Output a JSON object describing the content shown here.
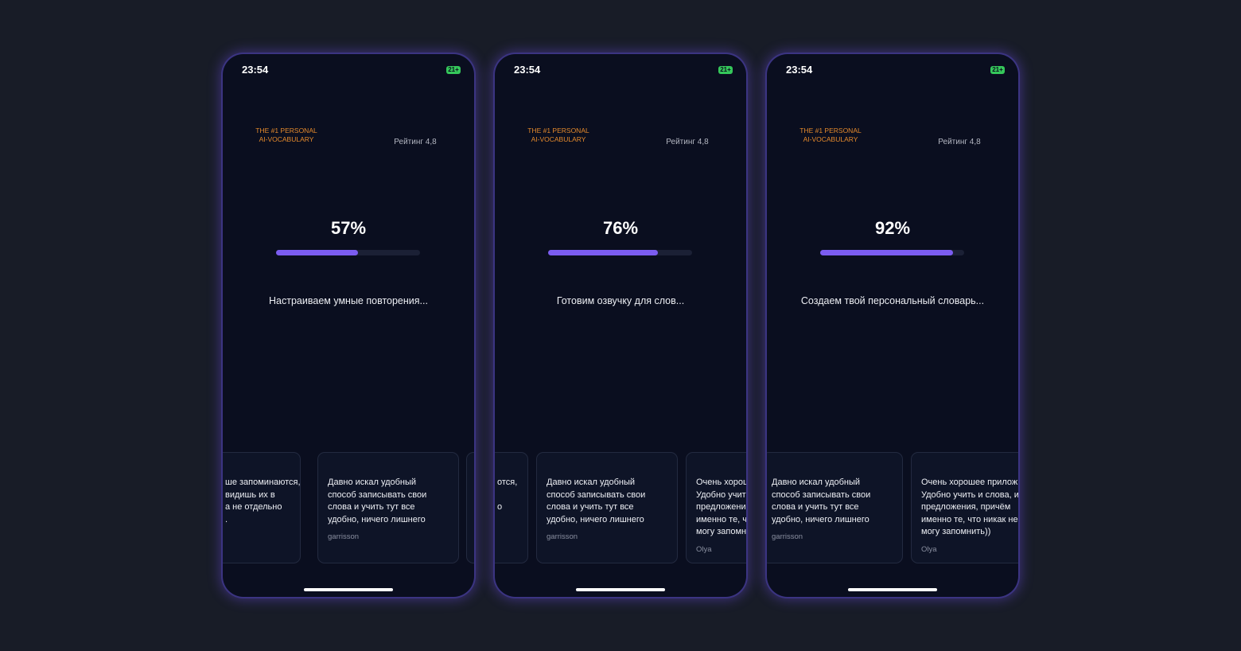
{
  "screens": [
    {
      "time": "23:54",
      "battery": "21+",
      "badge": [
        "THE #1 PERSONAL",
        "AI-VOCABULARY"
      ],
      "rating": "Рейтинг 4,8",
      "progress": {
        "value": 57,
        "label": "57%"
      },
      "steps": [
        true,
        true,
        true,
        false,
        false,
        false
      ],
      "status": "Настраиваем умные повторения...",
      "reviews": [
        {
          "lines": [
            "ше запоминаются,",
            "видишь их в",
            "а не отдельно",
            "."
          ]
        },
        {
          "lines": [
            "Давно искал удобный",
            "способ записывать свои",
            "слова и учить тут все",
            "удобно, ничего лишнего"
          ],
          "author": "garrisson"
        }
      ]
    },
    {
      "time": "23:54",
      "battery": "21+",
      "badge": [
        "THE #1 PERSONAL",
        "AI-VOCABULARY"
      ],
      "rating": "Рейтинг 4,8",
      "progress": {
        "value": 76,
        "label": "76%"
      },
      "steps": [
        true,
        true,
        true,
        true,
        false,
        false
      ],
      "status": "Готовим озвучку для слов...",
      "reviews": [
        {
          "lines": [
            "отся,",
            "о"
          ]
        },
        {
          "lines": [
            "Давно искал удобный",
            "способ записывать свои",
            "слова и учить тут все",
            "удобно, ничего лишнего"
          ],
          "author": "garrisson"
        },
        {
          "lines": [
            "Очень хорош",
            "Удобно учит",
            "предложени",
            "именно те, ч",
            "могу запомн"
          ],
          "author": "Olya"
        }
      ]
    },
    {
      "time": "23:54",
      "battery": "21+",
      "badge": [
        "THE #1 PERSONAL",
        "AI-VOCABULARY"
      ],
      "rating": "Рейтинг 4,8",
      "progress": {
        "value": 92,
        "label": "92%"
      },
      "steps": [
        true,
        true,
        true,
        true,
        true,
        false
      ],
      "status": "Создаем твой персональный словарь...",
      "reviews": [
        {
          "lines": [
            "Давно искал удобный",
            "способ записывать свои",
            "слова и учить тут все",
            "удобно, ничего лишнего"
          ],
          "author": "garrisson"
        },
        {
          "lines": [
            "Очень хорошее прилож",
            "Удобно учить и слова, и",
            "предложения, причём",
            "именно те, что никак не",
            "могу запомнить))"
          ],
          "author": "Olya"
        }
      ]
    }
  ]
}
